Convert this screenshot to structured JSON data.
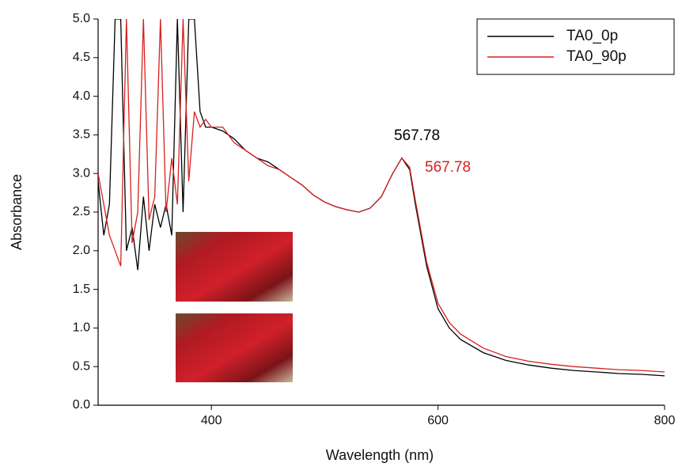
{
  "chart_data": {
    "type": "line",
    "x_label": "Wavelength (nm)",
    "y_label": "Absorbance",
    "x": [
      300,
      305,
      310,
      315,
      320,
      325,
      330,
      335,
      340,
      345,
      350,
      355,
      360,
      365,
      370,
      375,
      380,
      385,
      390,
      395,
      400,
      410,
      420,
      430,
      440,
      450,
      460,
      470,
      480,
      490,
      500,
      510,
      520,
      530,
      540,
      550,
      560,
      568,
      575,
      580,
      590,
      600,
      610,
      620,
      640,
      660,
      680,
      700,
      720,
      740,
      760,
      780,
      800
    ],
    "series": [
      {
        "name": "TA0_0p",
        "color": "#000000",
        "values": [
          2.9,
          2.2,
          2.6,
          5.0,
          5.0,
          2.0,
          2.3,
          1.75,
          2.7,
          2.0,
          2.6,
          2.3,
          2.6,
          2.2,
          5.0,
          2.5,
          5.0,
          5.0,
          3.8,
          3.6,
          3.6,
          3.55,
          3.45,
          3.3,
          3.2,
          3.15,
          3.05,
          2.95,
          2.85,
          2.72,
          2.63,
          2.57,
          2.53,
          2.5,
          2.55,
          2.7,
          3.0,
          3.2,
          3.05,
          2.6,
          1.8,
          1.25,
          1.0,
          0.85,
          0.68,
          0.58,
          0.52,
          0.48,
          0.45,
          0.43,
          0.41,
          0.4,
          0.38
        ]
      },
      {
        "name": "TA0_90p",
        "color": "#d62020",
        "values": [
          3.0,
          2.6,
          2.2,
          2.0,
          1.8,
          5.0,
          2.1,
          2.5,
          5.0,
          2.4,
          2.7,
          5.0,
          2.5,
          3.2,
          2.6,
          5.0,
          2.9,
          3.8,
          3.6,
          3.7,
          3.6,
          3.6,
          3.4,
          3.3,
          3.2,
          3.1,
          3.05,
          2.95,
          2.85,
          2.72,
          2.63,
          2.57,
          2.53,
          2.5,
          2.55,
          2.7,
          3.0,
          3.2,
          3.08,
          2.65,
          1.85,
          1.32,
          1.07,
          0.92,
          0.74,
          0.63,
          0.57,
          0.53,
          0.5,
          0.48,
          0.46,
          0.45,
          0.43
        ]
      }
    ],
    "annotations": [
      {
        "text": "567.78",
        "color": "#000000"
      },
      {
        "text": "567.78",
        "color": "#d62020"
      }
    ],
    "xlim": [
      300,
      800
    ],
    "xticks": [
      400,
      600,
      800
    ],
    "ylim": [
      0,
      5
    ],
    "yticks": [
      {
        "value": 0,
        "label": "0.0"
      },
      0.5,
      {
        "value": 1,
        "label": "1.0"
      },
      1.5,
      {
        "value": 2,
        "label": "2.0"
      },
      2.5,
      {
        "value": 3,
        "label": "3.0"
      },
      3.5,
      {
        "value": 4,
        "label": "4.0"
      },
      4.5,
      {
        "value": 5,
        "label": "5.0"
      }
    ],
    "legend": "top-right",
    "grid": false
  }
}
